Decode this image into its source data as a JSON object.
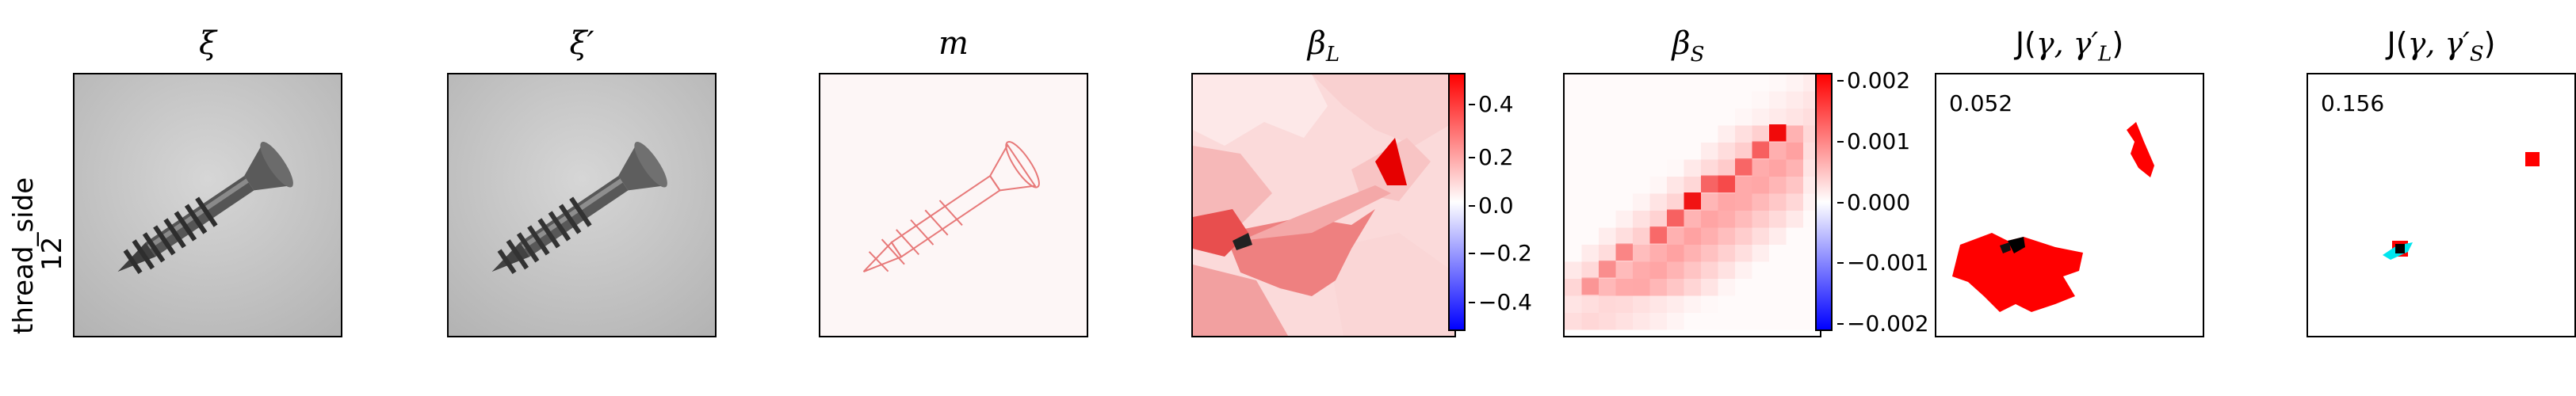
{
  "row_label": {
    "line1": "thread_side",
    "line2": "12"
  },
  "panels": [
    {
      "title": "ξ",
      "name": "xi"
    },
    {
      "title": "ξ′",
      "name": "xi-prime"
    },
    {
      "title": "m",
      "name": "mask"
    },
    {
      "title": "β",
      "sub": "L",
      "name": "beta-l"
    },
    {
      "title": "β",
      "sub": "S",
      "name": "beta-s"
    },
    {
      "title": "J(",
      "greek": "γ, γ′",
      "sub": "L",
      "close": ")",
      "name": "j-l",
      "score": "0.052"
    },
    {
      "title": "J(",
      "greek": "γ, γ′",
      "sub": "S",
      "close": ")",
      "name": "j-s",
      "score": "0.156"
    }
  ],
  "colorbar_l": {
    "ticks": [
      "0.4",
      "0.2",
      "0.0",
      "−0.2",
      "−0.4"
    ],
    "colors": {
      "top": "#ff0000",
      "mid": "#ffffff",
      "bottom": "#0000ff"
    }
  },
  "colorbar_s": {
    "ticks": [
      "0.002",
      "0.001",
      "0.000",
      "−0.001",
      "−0.002"
    ],
    "colors": {
      "top": "#ff0000",
      "mid": "#ffffff",
      "bottom": "#0000ff"
    }
  },
  "colors": {
    "red": "#ff0000",
    "black": "#000000",
    "cyan": "#00e5ee",
    "screw": "#4a4a4a",
    "photo_bg": "#c8c8c8"
  }
}
